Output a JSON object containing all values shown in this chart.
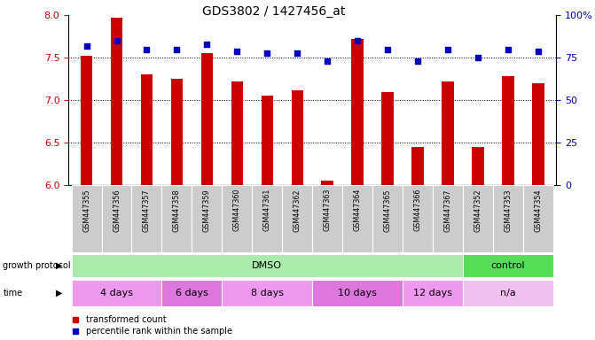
{
  "title": "GDS3802 / 1427456_at",
  "samples": [
    "GSM447355",
    "GSM447356",
    "GSM447357",
    "GSM447358",
    "GSM447359",
    "GSM447360",
    "GSM447361",
    "GSM447362",
    "GSM447363",
    "GSM447364",
    "GSM447365",
    "GSM447366",
    "GSM447367",
    "GSM447352",
    "GSM447353",
    "GSM447354"
  ],
  "transformed_count": [
    7.52,
    7.97,
    7.3,
    7.25,
    7.55,
    7.22,
    7.05,
    7.12,
    6.05,
    7.72,
    7.1,
    6.45,
    7.22,
    6.45,
    7.28,
    7.2
  ],
  "percentile_rank": [
    82,
    85,
    80,
    80,
    83,
    79,
    78,
    78,
    73,
    85,
    80,
    73,
    80,
    75,
    80,
    79
  ],
  "ylim_left": [
    6.0,
    8.0
  ],
  "ylim_right": [
    0,
    100
  ],
  "yticks_left": [
    6.0,
    6.5,
    7.0,
    7.5,
    8.0
  ],
  "yticks_right": [
    0,
    25,
    50,
    75,
    100
  ],
  "ytick_labels_right": [
    "0",
    "25",
    "50",
    "75",
    "100%"
  ],
  "bar_color": "#cc0000",
  "dot_color": "#0000bb",
  "grid_lines": [
    6.5,
    7.0,
    7.5
  ],
  "growth_protocol_groups": [
    {
      "label": "DMSO",
      "start": 0,
      "end": 13,
      "color": "#aaeaaa"
    },
    {
      "label": "control",
      "start": 13,
      "end": 16,
      "color": "#55dd55"
    }
  ],
  "time_groups": [
    {
      "label": "4 days",
      "start": 0,
      "end": 3,
      "color": "#ee99ee"
    },
    {
      "label": "6 days",
      "start": 3,
      "end": 5,
      "color": "#dd77dd"
    },
    {
      "label": "8 days",
      "start": 5,
      "end": 8,
      "color": "#ee99ee"
    },
    {
      "label": "10 days",
      "start": 8,
      "end": 11,
      "color": "#dd77dd"
    },
    {
      "label": "12 days",
      "start": 11,
      "end": 13,
      "color": "#ee99ee"
    },
    {
      "label": "n/a",
      "start": 13,
      "end": 16,
      "color": "#f0c0f0"
    }
  ],
  "legend_tc": "transformed count",
  "legend_pr": "percentile rank within the sample",
  "bg_color": "#ffffff",
  "label_color_left": "#cc0000",
  "label_color_right": "#0000bb",
  "sample_bg": "#cccccc",
  "bar_width": 0.4
}
